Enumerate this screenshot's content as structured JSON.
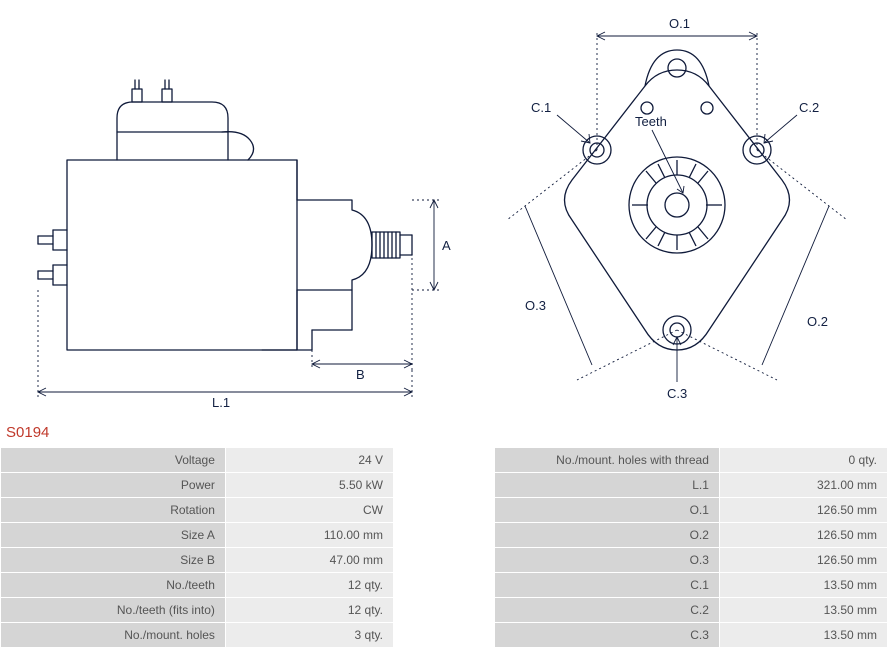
{
  "part_number": "S0194",
  "diagram_labels": {
    "side": {
      "A": "A",
      "B": "B",
      "L1": "L.1"
    },
    "front": {
      "O1": "O.1",
      "O2": "O.2",
      "O3": "O.3",
      "C1": "C.1",
      "C2": "C.2",
      "C3": "C.3",
      "Teeth": "Teeth"
    }
  },
  "spec_table_left": [
    {
      "label": "Voltage",
      "value": "24 V"
    },
    {
      "label": "Power",
      "value": "5.50 kW"
    },
    {
      "label": "Rotation",
      "value": "CW"
    },
    {
      "label": "Size A",
      "value": "110.00 mm"
    },
    {
      "label": "Size B",
      "value": "47.00 mm"
    },
    {
      "label": "No./teeth",
      "value": "12 qty."
    },
    {
      "label": "No./teeth (fits into)",
      "value": "12 qty."
    },
    {
      "label": "No./mount. holes",
      "value": "3 qty."
    }
  ],
  "spec_table_right": [
    {
      "label": "No./mount. holes with thread",
      "value": "0 qty."
    },
    {
      "label": "L.1",
      "value": "321.00 mm"
    },
    {
      "label": "O.1",
      "value": "126.50 mm"
    },
    {
      "label": "O.2",
      "value": "126.50 mm"
    },
    {
      "label": "O.3",
      "value": "126.50 mm"
    },
    {
      "label": "C.1",
      "value": "13.50 mm"
    },
    {
      "label": "C.2",
      "value": "13.50 mm"
    },
    {
      "label": "C.3",
      "value": "13.50 mm"
    }
  ],
  "style": {
    "stroke": "#0f1a3a",
    "stroke_width": 1.2,
    "dash": "2,3",
    "label_color": "#122042",
    "label_fontsize": 12,
    "part_color": "#c0392b",
    "table_label_bg": "#d5d5d5",
    "table_value_bg": "#ececec",
    "border_color": "#ffffff"
  }
}
